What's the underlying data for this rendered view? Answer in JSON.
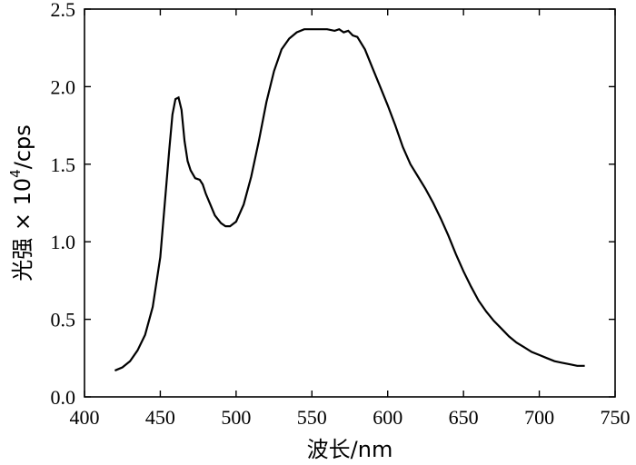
{
  "chart_data": {
    "type": "line",
    "title": "",
    "xlabel": "波长/nm",
    "ylabel_prefix": "光强 × 10",
    "ylabel_sup": "4",
    "ylabel_suffix": "/cps",
    "xlim": [
      400,
      750
    ],
    "ylim": [
      0.0,
      2.5
    ],
    "xticks": [
      400,
      450,
      500,
      550,
      600,
      650,
      700,
      750
    ],
    "xtick_labels": [
      "400",
      "450",
      "500",
      "550",
      "600",
      "650",
      "700",
      "750"
    ],
    "yticks": [
      0.0,
      0.5,
      1.0,
      1.5,
      2.0,
      2.5
    ],
    "ytick_labels": [
      "0.0",
      "0.5",
      "1.0",
      "1.5",
      "2.0",
      "2.5"
    ],
    "grid": false,
    "series": [
      {
        "color": "#000000",
        "x": [
          420,
          425,
          430,
          435,
          440,
          445,
          450,
          453,
          456,
          458,
          460,
          462,
          464,
          466,
          468,
          470,
          473,
          476,
          478,
          480,
          483,
          486,
          490,
          493,
          496,
          500,
          505,
          510,
          515,
          520,
          525,
          530,
          535,
          540,
          545,
          550,
          555,
          560,
          565,
          568,
          571,
          574,
          577,
          580,
          585,
          590,
          595,
          600,
          605,
          610,
          615,
          620,
          625,
          630,
          635,
          640,
          645,
          650,
          655,
          660,
          665,
          670,
          675,
          680,
          685,
          690,
          695,
          700,
          705,
          710,
          715,
          720,
          725,
          730
        ],
        "y": [
          0.17,
          0.19,
          0.23,
          0.3,
          0.4,
          0.58,
          0.9,
          1.25,
          1.6,
          1.82,
          1.92,
          1.93,
          1.85,
          1.65,
          1.52,
          1.46,
          1.41,
          1.4,
          1.37,
          1.31,
          1.24,
          1.17,
          1.12,
          1.1,
          1.1,
          1.13,
          1.24,
          1.42,
          1.65,
          1.9,
          2.1,
          2.24,
          2.31,
          2.35,
          2.37,
          2.37,
          2.37,
          2.37,
          2.36,
          2.37,
          2.35,
          2.36,
          2.33,
          2.32,
          2.24,
          2.12,
          2.0,
          1.88,
          1.75,
          1.61,
          1.5,
          1.42,
          1.34,
          1.25,
          1.15,
          1.04,
          0.92,
          0.81,
          0.71,
          0.62,
          0.55,
          0.49,
          0.44,
          0.39,
          0.35,
          0.32,
          0.29,
          0.27,
          0.25,
          0.23,
          0.22,
          0.21,
          0.2,
          0.2
        ]
      }
    ]
  }
}
